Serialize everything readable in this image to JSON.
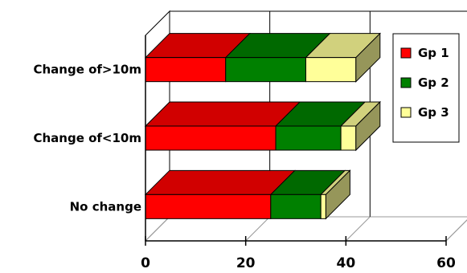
{
  "chart_data": {
    "type": "bar",
    "orientation": "horizontal",
    "stacked": true,
    "three_d": true,
    "categories": [
      "Change of>10m",
      "Change of<10m",
      "No change"
    ],
    "series": [
      {
        "name": "Gp 1",
        "color": "#ff0000",
        "values": [
          16,
          26,
          25
        ]
      },
      {
        "name": "Gp 2",
        "color": "#008000",
        "values": [
          16,
          13,
          10
        ]
      },
      {
        "name": "Gp 3",
        "color": "#ffff99",
        "values": [
          10,
          3,
          1
        ]
      }
    ],
    "x_ticks": [
      "0",
      "20",
      "40",
      "60"
    ],
    "xlim": [
      0,
      60
    ],
    "grid": true,
    "legend_position": "right"
  }
}
